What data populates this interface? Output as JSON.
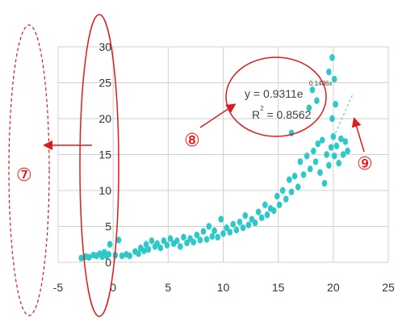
{
  "chart_data": {
    "type": "scatter",
    "xlim": [
      -5,
      25
    ],
    "ylim": [
      0,
      30
    ],
    "x_ticks": [
      -5,
      0,
      5,
      10,
      15,
      20,
      25
    ],
    "y_ticks": [
      0,
      5,
      10,
      15,
      20,
      25,
      30
    ],
    "x_tick_labels": [
      "-5",
      "0",
      "5",
      "10",
      "15",
      "20",
      "25"
    ],
    "y_tick_labels": [
      "0",
      "5",
      "10",
      "15",
      "20",
      "25",
      "30"
    ],
    "grid": true,
    "marker_color": "#2ec8c8",
    "trendline": {
      "type": "exponential",
      "coefficient": 0.9311,
      "rate": 0.1486,
      "equation": "y = 0.9311e",
      "exponent": "0.1486x",
      "r_squared": "R² = 0.8562",
      "r_squared_prefix": "R",
      "r_squared_exp": "2",
      "r_squared_suffix": " = 0.8562"
    },
    "points": [
      [
        -2.9,
        0.6
      ],
      [
        -2.5,
        0.8
      ],
      [
        -2.2,
        0.7
      ],
      [
        -1.8,
        1.0
      ],
      [
        -1.5,
        0.9
      ],
      [
        -1.2,
        1.2
      ],
      [
        -1.0,
        0.8
      ],
      [
        -0.8,
        1.4
      ],
      [
        -0.6,
        0.9
      ],
      [
        -0.4,
        1.1
      ],
      [
        -0.3,
        2.5
      ],
      [
        0.2,
        1.0
      ],
      [
        0.5,
        3.1
      ],
      [
        0.8,
        0.9
      ],
      [
        1.2,
        1.1
      ],
      [
        1.5,
        0.9
      ],
      [
        2.0,
        1.5
      ],
      [
        2.3,
        1.2
      ],
      [
        2.5,
        2.0
      ],
      [
        2.8,
        1.6
      ],
      [
        3.0,
        2.5
      ],
      [
        3.2,
        1.8
      ],
      [
        3.5,
        3.0
      ],
      [
        3.8,
        2.2
      ],
      [
        4.0,
        2.6
      ],
      [
        4.3,
        2.0
      ],
      [
        4.6,
        3.0
      ],
      [
        4.9,
        2.4
      ],
      [
        5.2,
        3.3
      ],
      [
        5.5,
        2.6
      ],
      [
        5.8,
        3.0
      ],
      [
        6.1,
        2.2
      ],
      [
        6.4,
        3.5
      ],
      [
        6.7,
        2.7
      ],
      [
        7.0,
        3.3
      ],
      [
        7.3,
        2.8
      ],
      [
        7.6,
        3.8
      ],
      [
        7.9,
        3.1
      ],
      [
        8.2,
        4.3
      ],
      [
        8.5,
        3.2
      ],
      [
        8.7,
        5.0
      ],
      [
        9.0,
        3.6
      ],
      [
        9.2,
        4.4
      ],
      [
        9.5,
        3.5
      ],
      [
        9.8,
        6.0
      ],
      [
        10.0,
        4.0
      ],
      [
        10.3,
        4.8
      ],
      [
        10.6,
        4.2
      ],
      [
        10.9,
        5.3
      ],
      [
        11.2,
        4.5
      ],
      [
        11.5,
        5.6
      ],
      [
        11.8,
        4.8
      ],
      [
        12.0,
        6.5
      ],
      [
        12.3,
        5.2
      ],
      [
        12.6,
        6.0
      ],
      [
        12.9,
        5.5
      ],
      [
        13.2,
        7.0
      ],
      [
        13.5,
        6.2
      ],
      [
        13.8,
        8.0
      ],
      [
        14.0,
        6.6
      ],
      [
        14.3,
        7.5
      ],
      [
        14.6,
        7.2
      ],
      [
        14.9,
        9.2
      ],
      [
        15.1,
        8.0
      ],
      [
        15.4,
        10.0
      ],
      [
        15.7,
        8.8
      ],
      [
        16.0,
        11.5
      ],
      [
        16.2,
        9.8
      ],
      [
        16.5,
        12.0
      ],
      [
        16.8,
        10.5
      ],
      [
        17.0,
        14.0
      ],
      [
        17.3,
        12.2
      ],
      [
        17.6,
        14.8
      ],
      [
        17.9,
        13.0
      ],
      [
        18.2,
        15.5
      ],
      [
        18.4,
        14.0
      ],
      [
        18.6,
        16.5
      ],
      [
        18.8,
        12.5
      ],
      [
        19.0,
        17.0
      ],
      [
        19.2,
        11.0
      ],
      [
        19.4,
        15.0
      ],
      [
        19.6,
        13.5
      ],
      [
        19.8,
        16.0
      ],
      [
        20.0,
        17.5
      ],
      [
        20.1,
        14.8
      ],
      [
        20.3,
        16.2
      ],
      [
        20.5,
        13.8
      ],
      [
        20.7,
        17.2
      ],
      [
        20.9,
        15.0
      ],
      [
        21.1,
        16.8
      ],
      [
        21.3,
        15.5
      ],
      [
        19.9,
        20.0
      ],
      [
        20.2,
        22.0
      ],
      [
        19.6,
        26.5
      ],
      [
        19.9,
        28.5
      ],
      [
        20.1,
        25.5
      ],
      [
        18.5,
        22.5
      ],
      [
        17.8,
        21.5
      ],
      [
        16.2,
        18.0
      ],
      [
        18.1,
        24.0
      ]
    ]
  },
  "annotations": {
    "label_7": "⑦",
    "label_8": "⑧",
    "label_9": "⑨",
    "annotation_color": "#e01a1a"
  }
}
